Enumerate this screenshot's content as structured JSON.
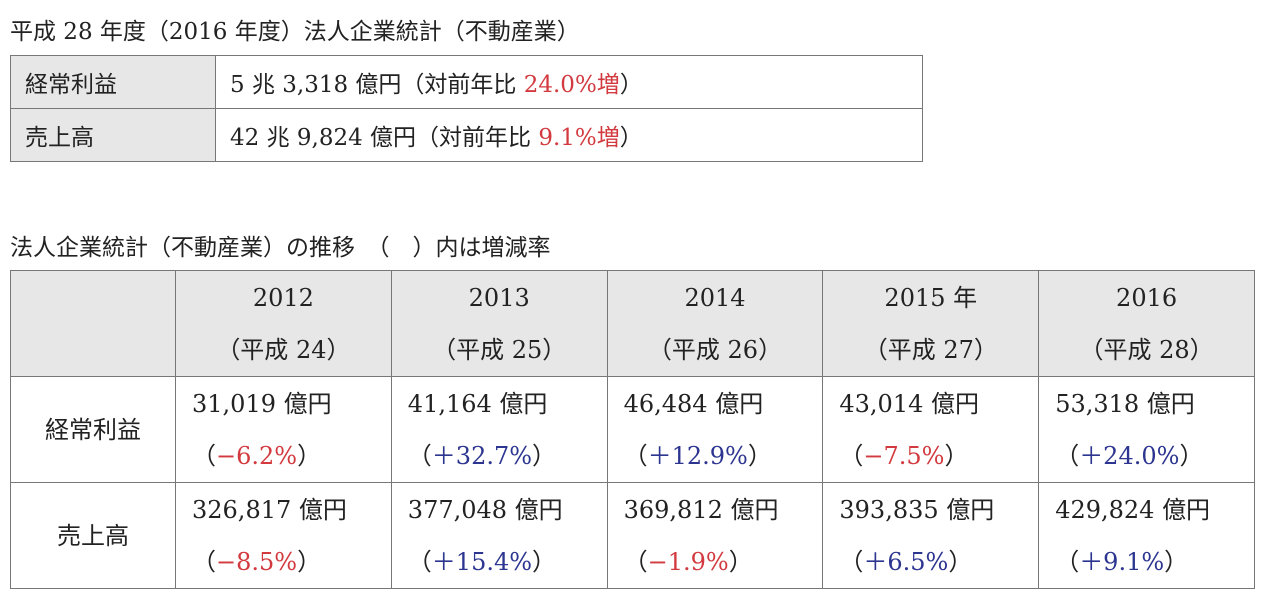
{
  "summary": {
    "title": "平成 28 年度（2016 年度）法人企業統計（不動産業）",
    "rows": [
      {
        "label": "経常利益",
        "prefix": "5 兆 3,318 億円（対前年比 ",
        "highlight": "24.0%増",
        "suffix": "）",
        "highlight_color": "#d23a3f"
      },
      {
        "label": "売上高",
        "prefix": "42 兆 9,824 億円（対前年比 ",
        "highlight": "9.1%増",
        "suffix": "）",
        "highlight_color": "#d23a3f"
      }
    ]
  },
  "trend": {
    "title": "法人企業統計（不動産業）の推移　（　）内は増減率",
    "columns": [
      {
        "year": "2012",
        "era": "（平成 24）"
      },
      {
        "year": "2013",
        "era": "（平成 25）"
      },
      {
        "year": "2014",
        "era": "（平成 26）"
      },
      {
        "year": "2015 年",
        "era": "（平成 27）"
      },
      {
        "year": "2016",
        "era": "（平成 28）"
      }
    ],
    "rows": [
      {
        "label": "経常利益",
        "cells": [
          {
            "amount": "31,019 億円",
            "open": "（",
            "change": "−6.2%",
            "close": "）",
            "color": "#d23a3f"
          },
          {
            "amount": "41,164 億円",
            "open": "（",
            "change": "＋32.7%",
            "close": "）",
            "color": "#2c3590"
          },
          {
            "amount": "46,484 億円",
            "open": "（",
            "change": "＋12.9%",
            "close": "）",
            "color": "#2c3590"
          },
          {
            "amount": "43,014 億円",
            "open": "（",
            "change": "−7.5%",
            "close": "）",
            "color": "#d23a3f"
          },
          {
            "amount": "53,318 億円",
            "open": "（",
            "change": "＋24.0%",
            "close": "）",
            "color": "#2c3590"
          }
        ]
      },
      {
        "label": "売上高",
        "cells": [
          {
            "amount": "326,817 億円",
            "open": "（",
            "change": "−8.5%",
            "close": "）",
            "color": "#d23a3f"
          },
          {
            "amount": "377,048 億円",
            "open": "（",
            "change": "＋15.4%",
            "close": "）",
            "color": "#2c3590"
          },
          {
            "amount": "369,812 億円",
            "open": "（",
            "change": "−1.9%",
            "close": "）",
            "color": "#d23a3f"
          },
          {
            "amount": "393,835 億円",
            "open": "（",
            "change": "＋6.5%",
            "close": "）",
            "color": "#2c3590"
          },
          {
            "amount": "429,824 億円",
            "open": "（",
            "change": "＋9.1%",
            "close": "）",
            "color": "#2c3590"
          }
        ]
      }
    ]
  }
}
